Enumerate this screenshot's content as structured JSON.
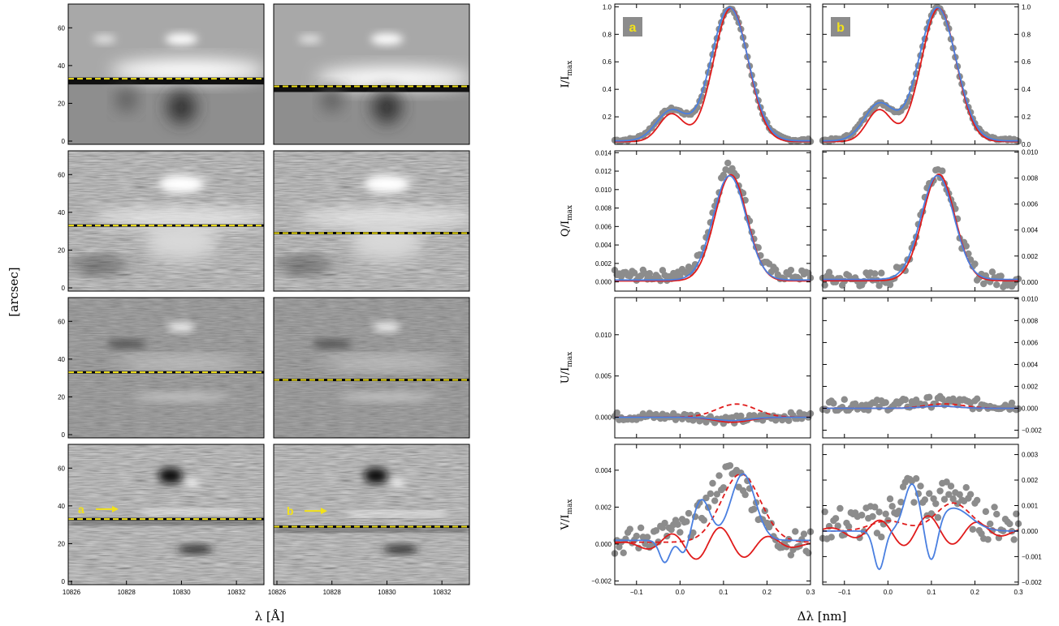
{
  "figure": {
    "spectro": {
      "ylabel": "[arcsec]",
      "xlabel": "λ [Å]",
      "xticks": [
        "10826",
        "10828",
        "10830",
        "10832"
      ],
      "yticks": [
        "0",
        "20",
        "40",
        "60"
      ],
      "cut_arcsec": {
        "a": 33,
        "b": 29
      },
      "arrow_labels": [
        "a",
        "b"
      ],
      "arrow_y_arcsec": {
        "a": 37,
        "b": 36
      }
    },
    "profiles": {
      "xlabel": "Δλ [nm]",
      "xticks": [
        "−0.1",
        "0.0",
        "0.1",
        "0.2",
        "0.3"
      ],
      "panel_tags": [
        "a",
        "b"
      ],
      "rows": [
        {
          "label": "I/I",
          "sub": "max",
          "left_ticks": [
            "0.2",
            "0.4",
            "0.6",
            "0.8",
            "1.0"
          ],
          "right_ticks": [
            "0.0",
            "0.2",
            "0.4",
            "0.6",
            "0.8",
            "1.0"
          ]
        },
        {
          "label": "Q/I",
          "sub": "max",
          "left_ticks": [
            "0.000",
            "0.002",
            "0.004",
            "0.006",
            "0.008",
            "0.010",
            "0.012",
            "0.014"
          ],
          "right_ticks": [
            "0.000",
            "0.002",
            "0.004",
            "0.006",
            "0.008",
            "0.010"
          ]
        },
        {
          "label": "U/I",
          "sub": "max",
          "left_ticks": [
            "0.000",
            "0.005",
            "0.010"
          ],
          "right_ticks": [
            "−0.002",
            "0.000",
            "0.002",
            "0.004",
            "0.006",
            "0.008",
            "0.010"
          ]
        },
        {
          "label": "V/I",
          "sub": "max",
          "left_ticks": [
            "−0.002",
            "0.000",
            "0.002",
            "0.004"
          ],
          "right_ticks": [
            "−0.002",
            "−0.001",
            "0.000",
            "0.001",
            "0.002",
            "0.003"
          ]
        }
      ]
    },
    "colors": {
      "obs": "#8c8c8c",
      "red": "#e01b1b",
      "blue": "#4a7fe0",
      "cut": "#f2e21a",
      "tag_bg": "#8c8c8c",
      "tag_fg": "#f2e21a"
    }
  },
  "chart_data": [
    {
      "type": "line",
      "panel": "I/Imax column a",
      "x": [
        -0.15,
        -0.1,
        -0.05,
        -0.02,
        0.0,
        0.02,
        0.05,
        0.08,
        0.1,
        0.12,
        0.15,
        0.2,
        0.25,
        0.3
      ],
      "series": [
        {
          "values": [
            0.04,
            0.05,
            0.12,
            0.22,
            0.24,
            0.26,
            0.4,
            0.78,
            0.97,
            0.99,
            0.7,
            0.18,
            0.04,
            0.02
          ]
        }
      ],
      "ylim": [
        0.0,
        1.02
      ],
      "xlim": [
        -0.15,
        0.3
      ]
    },
    {
      "type": "line",
      "panel": "I/Imax column b",
      "x": [
        -0.15,
        -0.1,
        -0.05,
        -0.02,
        0.0,
        0.02,
        0.05,
        0.08,
        0.1,
        0.12,
        0.15,
        0.2,
        0.25,
        0.3
      ],
      "series": [
        {
          "values": [
            0.04,
            0.06,
            0.13,
            0.24,
            0.27,
            0.3,
            0.48,
            0.82,
            0.97,
            0.98,
            0.68,
            0.16,
            0.04,
            0.02
          ]
        }
      ],
      "ylim": [
        0.0,
        1.02
      ],
      "xlim": [
        -0.15,
        0.3
      ]
    },
    {
      "type": "line",
      "panel": "Q/Imax column a",
      "x": [
        -0.15,
        -0.1,
        -0.05,
        0.0,
        0.05,
        0.08,
        0.1,
        0.12,
        0.14,
        0.17,
        0.2,
        0.25,
        0.3
      ],
      "series": [
        {
          "values": [
            0.0,
            0.0002,
            0.0006,
            0.0015,
            0.0045,
            0.009,
            0.0115,
            0.0115,
            0.0095,
            0.005,
            0.0018,
            0.0005,
            0.0002
          ]
        }
      ],
      "ylim": [
        -0.001,
        0.0142
      ],
      "xlim": [
        -0.15,
        0.3
      ]
    },
    {
      "type": "line",
      "panel": "Q/Imax column b",
      "x": [
        -0.15,
        -0.1,
        -0.05,
        0.0,
        0.05,
        0.08,
        0.1,
        0.12,
        0.14,
        0.17,
        0.2,
        0.25,
        0.3
      ],
      "series": [
        {
          "values": [
            -0.0001,
            0.0,
            0.0003,
            0.0012,
            0.0035,
            0.0065,
            0.0082,
            0.0082,
            0.0068,
            0.0036,
            0.0012,
            0.0003,
            0.0001
          ]
        }
      ],
      "ylim": [
        -0.0007,
        0.0101
      ],
      "xlim": [
        -0.15,
        0.3
      ]
    },
    {
      "type": "line",
      "panel": "U/Imax column a",
      "x": [
        -0.15,
        -0.1,
        -0.05,
        0.0,
        0.05,
        0.1,
        0.15,
        0.2,
        0.25,
        0.3
      ],
      "series": [
        {
          "values": [
            0.0,
            0.0,
            0.0,
            0.0001,
            0.0007,
            0.0014,
            0.0015,
            0.0005,
            0.0001,
            0.0
          ]
        }
      ],
      "ylim": [
        -0.0025,
        0.0145
      ],
      "xlim": [
        -0.15,
        0.3
      ]
    },
    {
      "type": "line",
      "panel": "V/Imax column a",
      "x": [
        -0.15,
        -0.1,
        -0.05,
        0.0,
        0.05,
        0.08,
        0.1,
        0.12,
        0.15,
        0.18,
        0.2,
        0.25,
        0.3
      ],
      "series": [
        {
          "values": [
            0.0,
            0.0001,
            0.0001,
            0.0002,
            0.0008,
            0.0016,
            0.0028,
            0.0038,
            0.0039,
            0.0024,
            0.0012,
            0.0003,
            0.0001
          ]
        }
      ],
      "ylim": [
        -0.0022,
        0.0054
      ],
      "xlim": [
        -0.15,
        0.3
      ]
    }
  ]
}
